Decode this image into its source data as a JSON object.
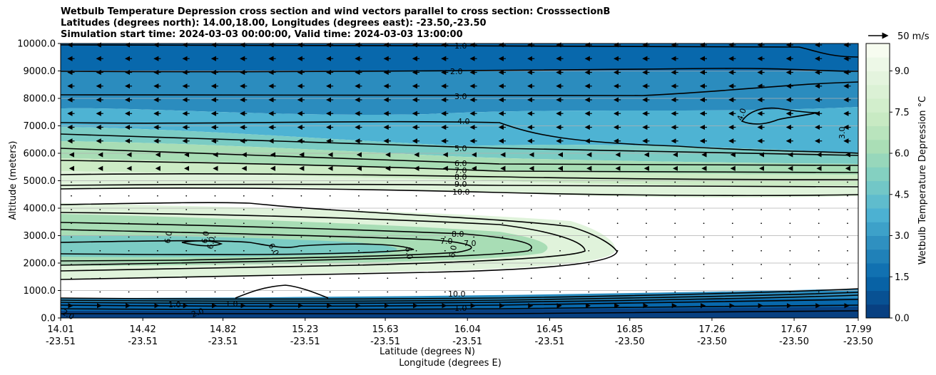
{
  "chart_data": {
    "type": "contourf",
    "title_lines": [
      "Wetbulb Temperature Depression cross section and wind vectors parallel to cross section: CrosssectionB",
      "Latitudes (degrees north): 14.00,18.00, Longitudes (degrees east): -23.50,-23.50",
      "Simulation start time: 2024-03-03 00:00:00, Valid time: 2024-03-03 13:00:00"
    ],
    "ylabel": "Altitude (meters)",
    "xlabel_lat": "Latitude (degrees N)",
    "xlabel_lon": "Longitude (degrees E)",
    "ylim": [
      0,
      10000
    ],
    "y_ticks": [
      "0.0",
      "1000.0",
      "2000.0",
      "3000.0",
      "4000.0",
      "5000.0",
      "6000.0",
      "7000.0",
      "8000.0",
      "9000.0",
      "10000.0"
    ],
    "x_ticks": [
      {
        "lat": "14.01",
        "lon": "-23.51"
      },
      {
        "lat": "14.42",
        "lon": "-23.51"
      },
      {
        "lat": "14.82",
        "lon": "-23.51"
      },
      {
        "lat": "15.23",
        "lon": "-23.51"
      },
      {
        "lat": "15.63",
        "lon": "-23.51"
      },
      {
        "lat": "16.04",
        "lon": "-23.51"
      },
      {
        "lat": "16.45",
        "lon": "-23.51"
      },
      {
        "lat": "16.85",
        "lon": "-23.50"
      },
      {
        "lat": "17.26",
        "lon": "-23.50"
      },
      {
        "lat": "17.67",
        "lon": "-23.50"
      },
      {
        "lat": "17.99",
        "lon": "-23.50"
      }
    ],
    "colorbar": {
      "label": "Wetbulb Temperature Depression °C",
      "range": [
        0,
        10
      ],
      "ticks": [
        "0.0",
        "1.5",
        "3.0",
        "4.5",
        "6.0",
        "7.5",
        "9.0"
      ],
      "colors": [
        "#084081",
        "#0868ac",
        "#2b8cbe",
        "#4eb3d3",
        "#7bccc4",
        "#a8ddb5",
        "#ccebc5",
        "#e0f3db",
        "#f7fcf0"
      ]
    },
    "quiver_key": "50 m/s",
    "contour_labels": [
      "1.0",
      "2.0",
      "3.0",
      "4.0",
      "5.0",
      "6.0",
      "7.0",
      "8.0",
      "9.0",
      "10.0",
      "4.0",
      "3.0",
      "8.0",
      "7.0",
      "7.0",
      "6.0",
      "6.0",
      "6.0",
      "6.0",
      "6.0",
      "6.0",
      "10.0",
      "1.0",
      "1.0",
      "2.0",
      "2.0",
      "1.0"
    ],
    "contour_levels": [
      1,
      2,
      3,
      4,
      5,
      6,
      7,
      8,
      9,
      10
    ]
  }
}
